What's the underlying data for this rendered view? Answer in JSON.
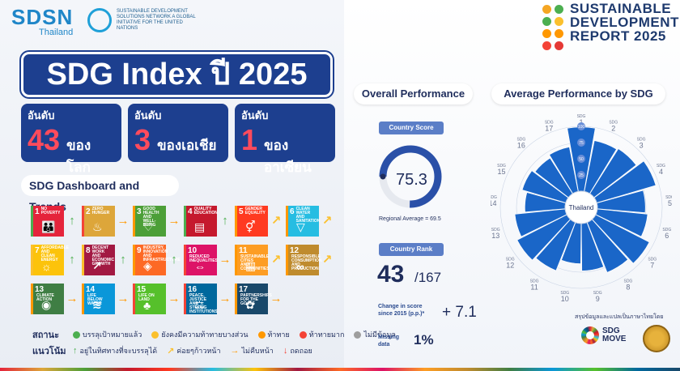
{
  "header": {
    "sdsn_name": "SDSN",
    "sdsn_sub": "Thailand",
    "network_text": "SUSTAINABLE DEVELOPMENT SOLUTIONS NETWORK A GLOBAL INITIATIVE FOR THE UNITED NATIONS",
    "report_line1": "SUSTAINABLE",
    "report_line2": "DEVELOPMENT",
    "report_line3": "REPORT 2025"
  },
  "title": "SDG Index ปี 2025",
  "ranks": [
    {
      "label": "อันดับ",
      "number": "43",
      "where": "ของโลก"
    },
    {
      "label": "อันดับ",
      "number": "3",
      "where": "ของเอเชีย"
    },
    {
      "label": "อันดับ",
      "number": "1",
      "where": "ของอาเซียน"
    }
  ],
  "dashboard": {
    "title": "SDG Dashboard and Trends",
    "tiles": [
      {
        "n": "1",
        "name": "NO POVERTY",
        "color": "#e5243b",
        "icon": "family-icon",
        "glyph": "👪",
        "status": "#4caf50",
        "trend": "↑",
        "trend_color": "#4caf50"
      },
      {
        "n": "2",
        "name": "ZERO HUNGER",
        "color": "#dda63a",
        "icon": "bowl-icon",
        "glyph": "♨",
        "status": "#f44336",
        "trend": "→",
        "trend_color": "#ff9800"
      },
      {
        "n": "3",
        "name": "GOOD HEALTH AND WELL-BEING",
        "color": "#4c9f38",
        "icon": "heartbeat-icon",
        "glyph": "♡",
        "status": "#ff9800",
        "trend": "→",
        "trend_color": "#ff9800"
      },
      {
        "n": "4",
        "name": "QUALITY EDUCATION",
        "color": "#c5192d",
        "icon": "book-icon",
        "glyph": "▤",
        "status": "#4caf50",
        "trend": "↑",
        "trend_color": "#4caf50"
      },
      {
        "n": "5",
        "name": "GENDER EQUALITY",
        "color": "#ff3a21",
        "icon": "gender-icon",
        "glyph": "⚥",
        "status": "#ff9800",
        "trend": "↗",
        "trend_color": "#fbc02d"
      },
      {
        "n": "6",
        "name": "CLEAN WATER AND SANITATION",
        "color": "#26bde2",
        "icon": "water-icon",
        "glyph": "▽",
        "status": "#ff9800",
        "trend": "↗",
        "trend_color": "#fbc02d"
      },
      {
        "n": "7",
        "name": "AFFORDABLE AND CLEAN ENERGY",
        "color": "#fcc30b",
        "icon": "sun-icon",
        "glyph": "☼",
        "status": "#fbc02d",
        "trend": "↑",
        "trend_color": "#4caf50"
      },
      {
        "n": "8",
        "name": "DECENT WORK AND ECONOMIC GROWTH",
        "color": "#a21942",
        "icon": "growth-icon",
        "glyph": "↗",
        "status": "#fbc02d",
        "trend": "↑",
        "trend_color": "#4caf50"
      },
      {
        "n": "9",
        "name": "INDUSTRY, INNOVATION AND INFRASTRUCTURE",
        "color": "#fd6925",
        "icon": "cubes-icon",
        "glyph": "◈",
        "status": "#ff9800",
        "trend": "↑",
        "trend_color": "#4caf50"
      },
      {
        "n": "10",
        "name": "REDUCED INEQUALITIES",
        "color": "#dd1367",
        "icon": "equal-icon",
        "glyph": "⇔",
        "status": "#f44336",
        "trend": "→",
        "trend_color": "#ff9800"
      },
      {
        "n": "11",
        "name": "SUSTAINABLE CITIES AND COMMUNITIES",
        "color": "#fd9d24",
        "icon": "city-icon",
        "glyph": "▥",
        "status": "#ff9800",
        "trend": "↗",
        "trend_color": "#fbc02d"
      },
      {
        "n": "12",
        "name": "RESPONSIBLE CONSUMPTION AND PRODUCTION",
        "color": "#bf8b2e",
        "icon": "infinity-icon",
        "glyph": "∞",
        "status": "#ff9800",
        "trend": "↗",
        "trend_color": "#fbc02d"
      },
      {
        "n": "13",
        "name": "CLIMATE ACTION",
        "color": "#3f7e44",
        "icon": "eye-icon",
        "glyph": "◉",
        "status": "#ff9800",
        "trend": "→",
        "trend_color": "#ff9800"
      },
      {
        "n": "14",
        "name": "LIFE BELOW WATER",
        "color": "#0a97d9",
        "icon": "fish-icon",
        "glyph": "≋",
        "status": "#ff9800",
        "trend": "→",
        "trend_color": "#ff9800"
      },
      {
        "n": "15",
        "name": "LIFE ON LAND",
        "color": "#56c02b",
        "icon": "tree-icon",
        "glyph": "♣",
        "status": "#f44336",
        "trend": "→",
        "trend_color": "#ff9800"
      },
      {
        "n": "16",
        "name": "PEACE, JUSTICE AND STRONG INSTITUTIONS",
        "color": "#00689d",
        "icon": "dove-icon",
        "glyph": "⚖",
        "status": "#f44336",
        "trend": "→",
        "trend_color": "#ff9800"
      },
      {
        "n": "17",
        "name": "PARTNERSHIPS FOR THE GOALS",
        "color": "#19486a",
        "icon": "rings-icon",
        "glyph": "✿",
        "status": "#ff9800",
        "trend": "→",
        "trend_color": "#ff9800"
      }
    ]
  },
  "legend": {
    "status_label": "สถานะ",
    "status_items": [
      {
        "color": "#4caf50",
        "text": "บรรลุเป้าหมายแล้ว"
      },
      {
        "color": "#fbc02d",
        "text": "ยังคงมีความท้าทายบางส่วน"
      },
      {
        "color": "#ff9800",
        "text": "ท้าทาย"
      },
      {
        "color": "#f44336",
        "text": "ท้าทายมาก"
      },
      {
        "color": "#9e9e9e",
        "text": "ไม่มีข้อมูล"
      }
    ],
    "trend_label": "แนวโน้ม",
    "trend_items": [
      {
        "arrow": "↑",
        "color": "#4caf50",
        "text": "อยู่ในทิศทางที่จะบรรลุได้"
      },
      {
        "arrow": "↗",
        "color": "#fbc02d",
        "text": "ค่อยๆก้าวหน้า"
      },
      {
        "arrow": "→",
        "color": "#ff9800",
        "text": "ไม่คืบหน้า"
      },
      {
        "arrow": "↓",
        "color": "#f44336",
        "text": "ถดถอย"
      }
    ]
  },
  "overall": {
    "title": "Overall Performance",
    "score_label": "Country Score",
    "score": "75.3",
    "score_value": 75.3,
    "regional_avg": "Regional Average = 69.5",
    "rank_label": "Country Rank",
    "rank": "43",
    "rank_of": "/167",
    "change_label": "Change in score since 2015 (p.p.)*",
    "change_value": "+ 7.1",
    "missing_label_1": "Missing",
    "missing_label_2": "data",
    "missing_value": "1%"
  },
  "chart_data": {
    "type": "polar-bar",
    "title": "Average Performance by SDG",
    "center_label": "Thailand",
    "ring_labels": [
      "100",
      "75",
      "50",
      "25"
    ],
    "rlim": [
      0,
      100
    ],
    "categories": [
      "SDG 1",
      "SDG 2",
      "SDG 3",
      "SDG 4",
      "SDG 5",
      "SDG 6",
      "SDG 7",
      "SDG 8",
      "SDG 9",
      "SDG 10",
      "SDG 11",
      "SDG 12",
      "SDG 13",
      "SDG 14",
      "SDG 15",
      "SDG 16",
      "SDG 17"
    ],
    "values": [
      99,
      80,
      82,
      95,
      74,
      78,
      93,
      83,
      73,
      62,
      80,
      86,
      78,
      62,
      70,
      65,
      70
    ],
    "bar_color": "#1a66c8"
  },
  "credit": {
    "text": "สรุปข้อมูลและแปลเป็นภาษาไทยโดย",
    "sdgmove_1": "SDG",
    "sdgmove_2": "MOVE"
  }
}
